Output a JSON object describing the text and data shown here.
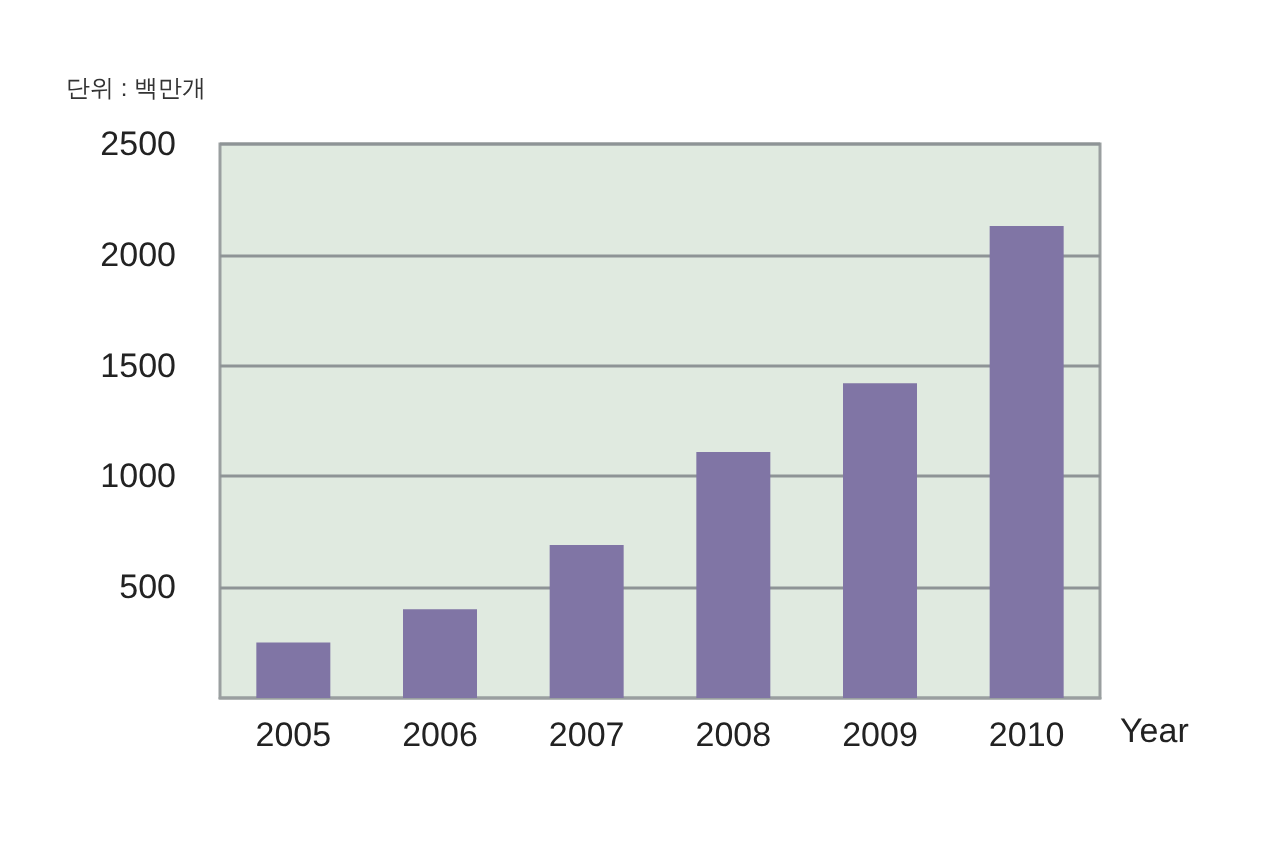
{
  "chart_data": {
    "type": "bar",
    "ylabel": "단위 : 백만개",
    "xlabel": "Year",
    "categories": [
      "2005",
      "2006",
      "2007",
      "2008",
      "2009",
      "2010"
    ],
    "values": [
      250,
      400,
      690,
      1110,
      1420,
      2130
    ],
    "color": "#8075a5",
    "ylim": [
      0,
      2500
    ],
    "yticks": [
      500,
      1000,
      1500,
      2000,
      2500
    ],
    "grid": "y"
  }
}
